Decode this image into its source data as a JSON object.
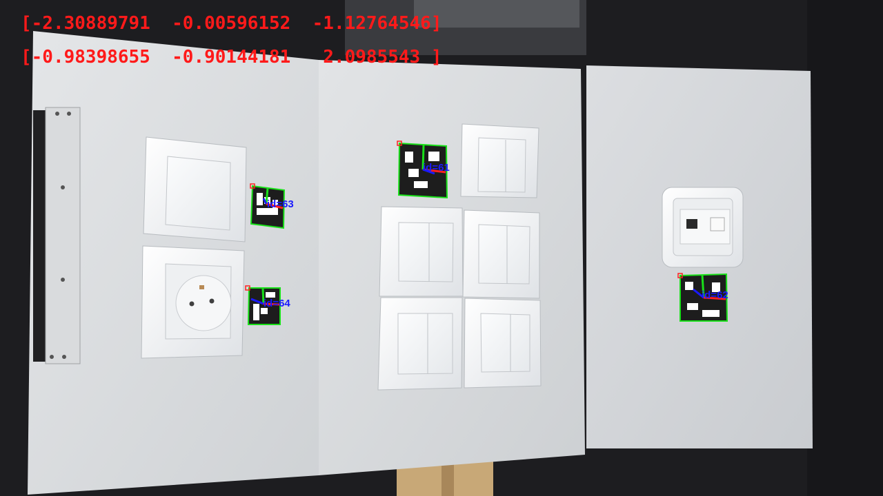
{
  "overlay": {
    "line1": "[-2.30889791  -0.00596152  -1.12764546]",
    "line2": "[-0.98398655  -0.90144181   2.0985543 ]"
  },
  "markers": [
    {
      "label": "id=63"
    },
    {
      "label": "id=64"
    },
    {
      "label": "id=61"
    },
    {
      "label": "id=62"
    }
  ]
}
